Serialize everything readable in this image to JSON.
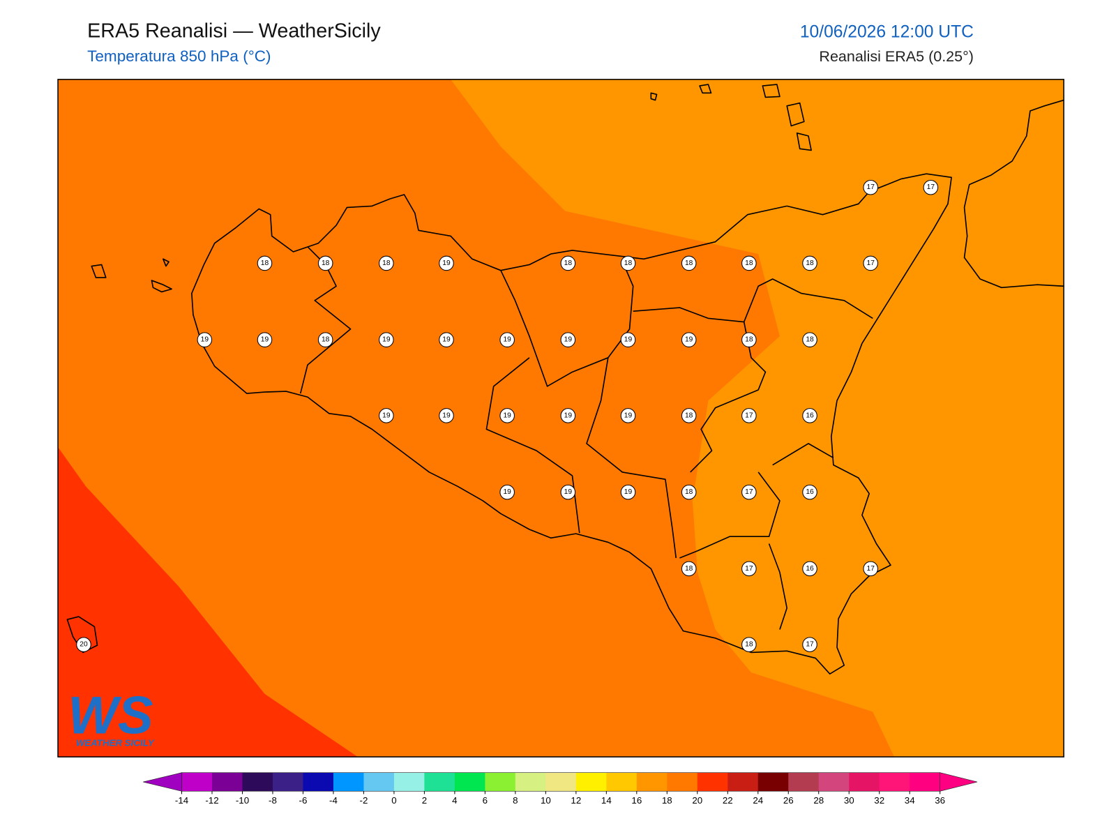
{
  "header": {
    "title": "ERA5 Reanalisi — WeatherSicily",
    "subtitle": "Temperatura 850 hPa (°C)",
    "datetime": "10/06/2026 12:00 UTC",
    "source": "Reanalisi ERA5 (0.25°)"
  },
  "stations": {
    "values": [
      17,
      17,
      18,
      18,
      18,
      19,
      18,
      18,
      18,
      18,
      18,
      17,
      19,
      19,
      18,
      19,
      19,
      19,
      19,
      19,
      19,
      18,
      18,
      19,
      19,
      19,
      19,
      19,
      18,
      17,
      16,
      19,
      19,
      19,
      18,
      17,
      16,
      18,
      17,
      16,
      17,
      20,
      18,
      17
    ]
  },
  "colorbar": {
    "ticks": [
      -14,
      -12,
      -10,
      -8,
      -6,
      -4,
      -2,
      0,
      2,
      4,
      6,
      8,
      10,
      12,
      14,
      16,
      18,
      20,
      22,
      24,
      26,
      28,
      30,
      32,
      34,
      36
    ],
    "colors": [
      "#bf00c8",
      "#7b0096",
      "#2d0a5a",
      "#3b2088",
      "#0a0ab0",
      "#0096ff",
      "#64c8f0",
      "#96f0e6",
      "#1ee196",
      "#00e650",
      "#8cf032",
      "#d7f082",
      "#f0e682",
      "#fff000",
      "#ffc800",
      "#ff9600",
      "#ff7800",
      "#ff3200",
      "#c81e14",
      "#780000",
      "#b43c50",
      "#d2467d",
      "#e61464",
      "#ff1478",
      "#ff0080"
    ],
    "under_color": "#a000c0",
    "over_color": "#ff0082"
  },
  "logo": {
    "mark": "WS",
    "text": "WEATHER SICILY"
  }
}
